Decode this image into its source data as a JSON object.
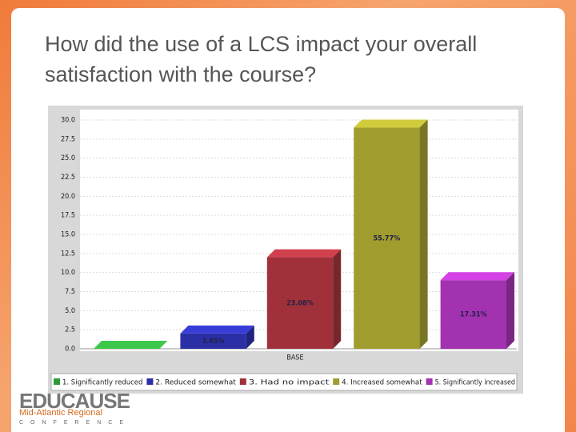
{
  "slide_title": "How did the use of a LCS impact your overall satisfaction with the course?",
  "logo": {
    "name": "EDUCAUSE",
    "region": "Mid-Atlantic Regional",
    "event": "CONFERENCE"
  },
  "chart_data": {
    "type": "bar3d",
    "x_label": "BASE",
    "categories": [
      "1. Significantly reduced",
      "2. Reduced somewhat",
      "3. Had no impact",
      "4. Increased somewhat",
      "5. Significantly increased"
    ],
    "colors": [
      "#2f9a3a",
      "#2b2fa6",
      "#a0313b",
      "#a09d2e",
      "#a332b0"
    ],
    "values": [
      0,
      2,
      12,
      29,
      9
    ],
    "value_labels": [
      null,
      "3.85%",
      "23.08%",
      "55.77%",
      "17.31%"
    ],
    "ylim": [
      0,
      30
    ],
    "yticks": [
      {
        "value": 0,
        "label": "0.0"
      },
      {
        "value": 2.5,
        "label": "2.5"
      },
      {
        "value": 5,
        "label": "5.0"
      },
      {
        "value": 7.5,
        "label": "7.5"
      },
      {
        "value": 10,
        "label": "10.0"
      },
      {
        "value": 12.5,
        "label": "12.5"
      },
      {
        "value": 15,
        "label": "15.0"
      },
      {
        "value": 17.5,
        "label": "17.5"
      },
      {
        "value": 20,
        "label": "20.0"
      },
      {
        "value": 22.5,
        "label": "22.5"
      },
      {
        "value": 25,
        "label": "25.0"
      },
      {
        "value": 27.5,
        "label": "27.5"
      },
      {
        "value": 30,
        "label": "30.0"
      }
    ],
    "grid": true
  }
}
